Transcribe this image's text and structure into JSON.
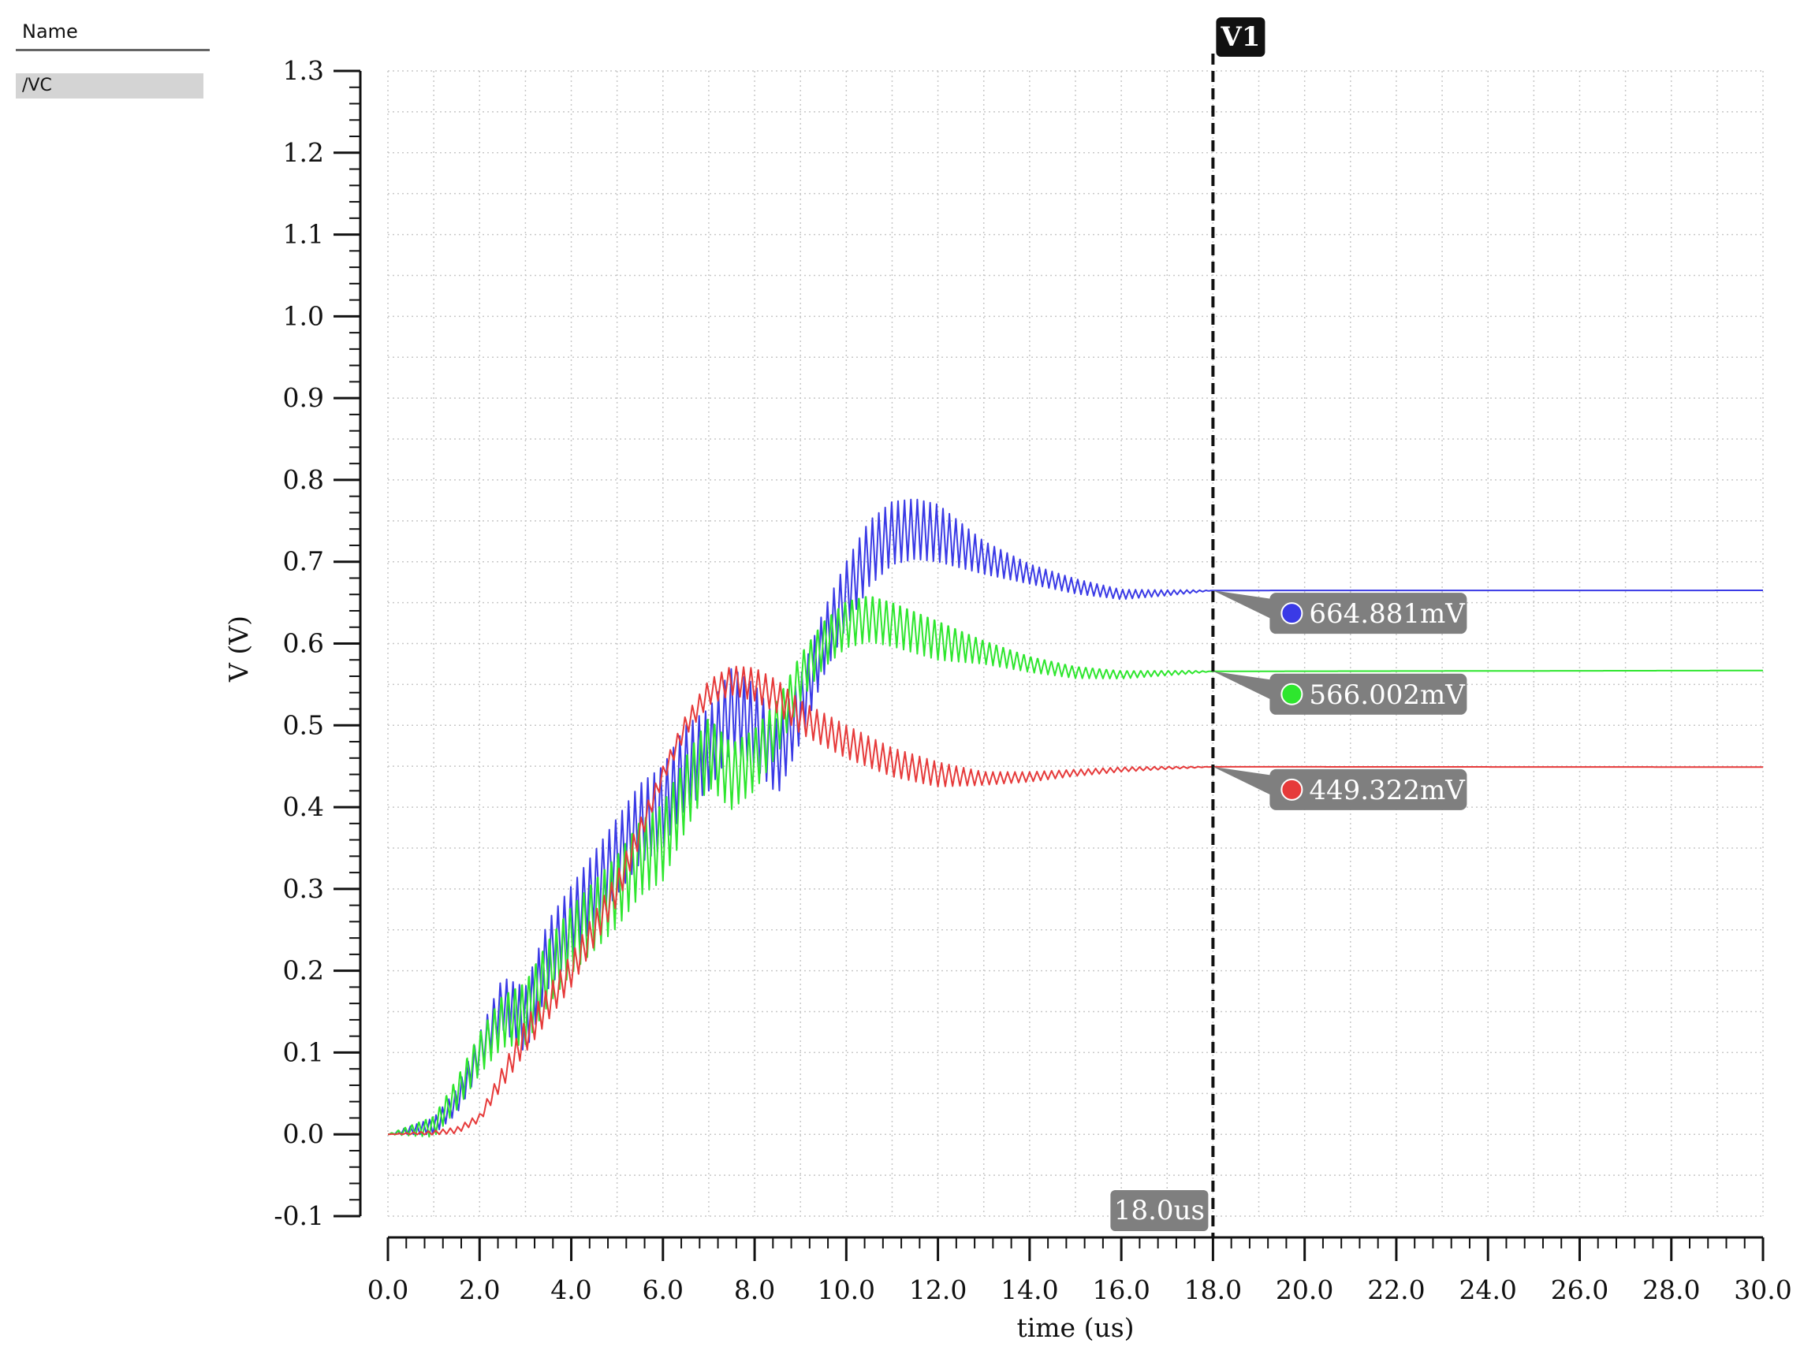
{
  "legend": {
    "header": "Name",
    "items": [
      {
        "label": "/VC"
      }
    ]
  },
  "chart_data": {
    "type": "line",
    "xlabel": "time (us)",
    "ylabel": "V (V)",
    "xlim": [
      0.0,
      30.0
    ],
    "ylim": [
      -0.1,
      1.3
    ],
    "x_ticks": [
      "0.0",
      "2.0",
      "4.0",
      "6.0",
      "8.0",
      "10.0",
      "12.0",
      "14.0",
      "16.0",
      "18.0",
      "20.0",
      "22.0",
      "24.0",
      "26.0",
      "28.0",
      "30.0"
    ],
    "y_ticks": [
      "-0.1",
      "0.0",
      "0.1",
      "0.2",
      "0.3",
      "0.4",
      "0.5",
      "0.6",
      "0.7",
      "0.8",
      "0.9",
      "1.0",
      "1.1",
      "1.2",
      "1.3"
    ],
    "grid": true,
    "cursor": {
      "name": "V1",
      "x": 18.0,
      "x_label": "18.0us"
    },
    "series": [
      {
        "color": "#3a3ae6",
        "marker_label": "664.881mV",
        "marker_value": 0.664881,
        "envelope": [
          [
            0,
            0
          ],
          [
            1.0,
            0.01
          ],
          [
            1.5,
            0.04
          ],
          [
            2.0,
            0.1
          ],
          [
            2.5,
            0.16
          ],
          [
            3.0,
            0.14
          ],
          [
            3.5,
            0.22
          ],
          [
            4.0,
            0.26
          ],
          [
            4.5,
            0.3
          ],
          [
            5.0,
            0.34
          ],
          [
            5.5,
            0.38
          ],
          [
            6.0,
            0.4
          ],
          [
            6.5,
            0.45
          ],
          [
            7.0,
            0.47
          ],
          [
            7.5,
            0.52
          ],
          [
            8.0,
            0.5
          ],
          [
            8.5,
            0.46
          ],
          [
            9.0,
            0.52
          ],
          [
            9.5,
            0.6
          ],
          [
            10.0,
            0.66
          ],
          [
            10.5,
            0.71
          ],
          [
            11.0,
            0.735
          ],
          [
            11.5,
            0.74
          ],
          [
            12.0,
            0.735
          ],
          [
            12.5,
            0.72
          ],
          [
            13.0,
            0.705
          ],
          [
            14.0,
            0.685
          ],
          [
            15.0,
            0.67
          ],
          [
            16.0,
            0.66
          ],
          [
            17.0,
            0.662
          ],
          [
            18.0,
            0.664881
          ],
          [
            30.0,
            0.665
          ]
        ],
        "amplitude": [
          [
            0,
            0
          ],
          [
            1.5,
            0.015
          ],
          [
            3,
            0.04
          ],
          [
            6,
            0.05
          ],
          [
            8,
            0.05
          ],
          [
            9,
            0.04
          ],
          [
            10.5,
            0.04
          ],
          [
            12,
            0.035
          ],
          [
            13,
            0.02
          ],
          [
            14,
            0.012
          ],
          [
            16,
            0.006
          ],
          [
            17.5,
            0.002
          ],
          [
            18,
            0
          ],
          [
            30,
            0
          ]
        ]
      },
      {
        "color": "#2ee62e",
        "marker_label": "566.002mV",
        "marker_value": 0.566002,
        "envelope": [
          [
            0,
            0
          ],
          [
            1.0,
            0.01
          ],
          [
            1.5,
            0.05
          ],
          [
            2.0,
            0.1
          ],
          [
            2.5,
            0.14
          ],
          [
            3.0,
            0.15
          ],
          [
            3.5,
            0.2
          ],
          [
            4.0,
            0.24
          ],
          [
            4.5,
            0.27
          ],
          [
            5.0,
            0.3
          ],
          [
            5.5,
            0.34
          ],
          [
            6.0,
            0.36
          ],
          [
            6.5,
            0.42
          ],
          [
            7.0,
            0.47
          ],
          [
            7.5,
            0.44
          ],
          [
            8.0,
            0.46
          ],
          [
            8.5,
            0.5
          ],
          [
            9.0,
            0.56
          ],
          [
            9.5,
            0.6
          ],
          [
            10.0,
            0.625
          ],
          [
            10.5,
            0.632
          ],
          [
            11.0,
            0.625
          ],
          [
            12.0,
            0.605
          ],
          [
            13.0,
            0.59
          ],
          [
            14.0,
            0.575
          ],
          [
            15.0,
            0.565
          ],
          [
            16.0,
            0.562
          ],
          [
            17.0,
            0.564
          ],
          [
            18.0,
            0.566002
          ],
          [
            30.0,
            0.567
          ]
        ],
        "amplitude": [
          [
            0,
            0
          ],
          [
            1.5,
            0.02
          ],
          [
            3,
            0.04
          ],
          [
            6,
            0.05
          ],
          [
            8,
            0.04
          ],
          [
            9,
            0.03
          ],
          [
            10.5,
            0.03
          ],
          [
            12,
            0.025
          ],
          [
            13,
            0.015
          ],
          [
            14,
            0.01
          ],
          [
            16,
            0.005
          ],
          [
            17.5,
            0.002
          ],
          [
            18,
            0
          ],
          [
            30,
            0
          ]
        ]
      },
      {
        "color": "#e63a3a",
        "marker_label": "449.322mV",
        "marker_value": 0.449322,
        "envelope": [
          [
            0,
            0
          ],
          [
            1.0,
            0.002
          ],
          [
            1.5,
            0.005
          ],
          [
            2.0,
            0.02
          ],
          [
            2.5,
            0.07
          ],
          [
            3.0,
            0.12
          ],
          [
            3.5,
            0.16
          ],
          [
            4.0,
            0.2
          ],
          [
            4.5,
            0.25
          ],
          [
            5.0,
            0.3
          ],
          [
            5.5,
            0.37
          ],
          [
            6.0,
            0.44
          ],
          [
            6.5,
            0.5
          ],
          [
            7.0,
            0.54
          ],
          [
            7.5,
            0.555
          ],
          [
            8.0,
            0.55
          ],
          [
            8.5,
            0.535
          ],
          [
            9.0,
            0.51
          ],
          [
            10.0,
            0.48
          ],
          [
            11.0,
            0.455
          ],
          [
            12.0,
            0.44
          ],
          [
            13.0,
            0.435
          ],
          [
            14.0,
            0.437
          ],
          [
            15.0,
            0.442
          ],
          [
            16.0,
            0.446
          ],
          [
            17.0,
            0.448
          ],
          [
            18.0,
            0.449322
          ],
          [
            30.0,
            0.449
          ]
        ],
        "amplitude": [
          [
            0,
            0
          ],
          [
            2,
            0.005
          ],
          [
            3,
            0.02
          ],
          [
            5,
            0.02
          ],
          [
            6,
            0.01
          ],
          [
            7,
            0.015
          ],
          [
            8,
            0.02
          ],
          [
            10,
            0.02
          ],
          [
            12,
            0.015
          ],
          [
            13,
            0.008
          ],
          [
            15,
            0.004
          ],
          [
            17.5,
            0.001
          ],
          [
            18,
            0
          ],
          [
            30,
            0
          ]
        ]
      }
    ]
  }
}
